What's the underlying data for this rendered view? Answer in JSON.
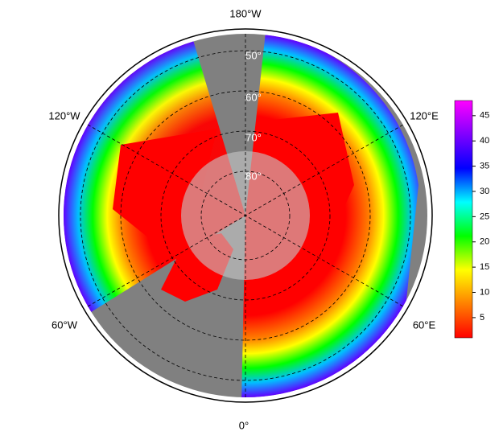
{
  "map": {
    "longitude_labels": [
      "180°W",
      "120°W",
      "120°E",
      "60°W",
      "60°E",
      "0°"
    ],
    "latitude_labels": [
      "50°",
      "60°",
      "70°",
      "80°"
    ],
    "colorbar": {
      "colors": [
        "#ff0000",
        "#ff8000",
        "#ffff00",
        "#00ff00",
        "#00ffff",
        "#0000ff",
        "#8000ff",
        "#ff00ff"
      ],
      "clim": [
        1,
        48
      ],
      "ticks": [
        5,
        10,
        15,
        20,
        25,
        30,
        35,
        40,
        45
      ]
    }
  }
}
